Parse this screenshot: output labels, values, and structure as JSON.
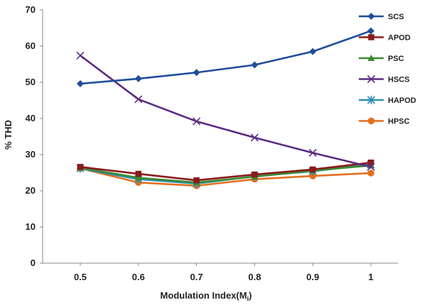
{
  "chart_data": {
    "type": "line",
    "x": [
      0.5,
      0.6,
      0.7,
      0.8,
      0.9,
      1
    ],
    "x_tick_labels": [
      "0.5",
      "0.6",
      "0.7",
      "0.8",
      "0.9",
      "1"
    ],
    "xlabel_main": "Modulation Index(M",
    "xlabel_sub": "i",
    "xlabel_end": ")",
    "ylabel": "% THD",
    "ylim": [
      0,
      70
    ],
    "y_ticks": [
      0,
      10,
      20,
      30,
      40,
      50,
      60,
      70
    ],
    "y_tick_labels": [
      "0",
      "10",
      "20",
      "30",
      "40",
      "50",
      "60",
      "70"
    ],
    "grid": false,
    "legend_position": "right",
    "series": [
      {
        "name": "SCS",
        "color": "#1f4e9a",
        "marker": "diamond",
        "values": [
          49.6,
          51.0,
          52.7,
          54.8,
          58.5,
          64.2
        ]
      },
      {
        "name": "APOD",
        "color": "#8b1a1a",
        "marker": "square",
        "values": [
          26.6,
          24.7,
          22.9,
          24.5,
          25.9,
          27.8
        ]
      },
      {
        "name": "PSC",
        "color": "#3c8a2e",
        "marker": "triangle",
        "values": [
          26.4,
          23.6,
          22.3,
          23.9,
          25.6,
          27.0
        ]
      },
      {
        "name": "HSCS",
        "color": "#5b2b82",
        "marker": "x",
        "values": [
          57.4,
          45.3,
          39.2,
          34.7,
          30.5,
          26.6
        ]
      },
      {
        "name": "HAPOD",
        "color": "#2a8fb0",
        "marker": "star",
        "values": [
          26.2,
          23.2,
          22.0,
          24.0,
          25.4,
          27.3
        ]
      },
      {
        "name": "HPSC",
        "color": "#e36f1e",
        "marker": "circle",
        "values": [
          26.2,
          22.3,
          21.4,
          23.2,
          24.1,
          24.9
        ]
      }
    ]
  }
}
